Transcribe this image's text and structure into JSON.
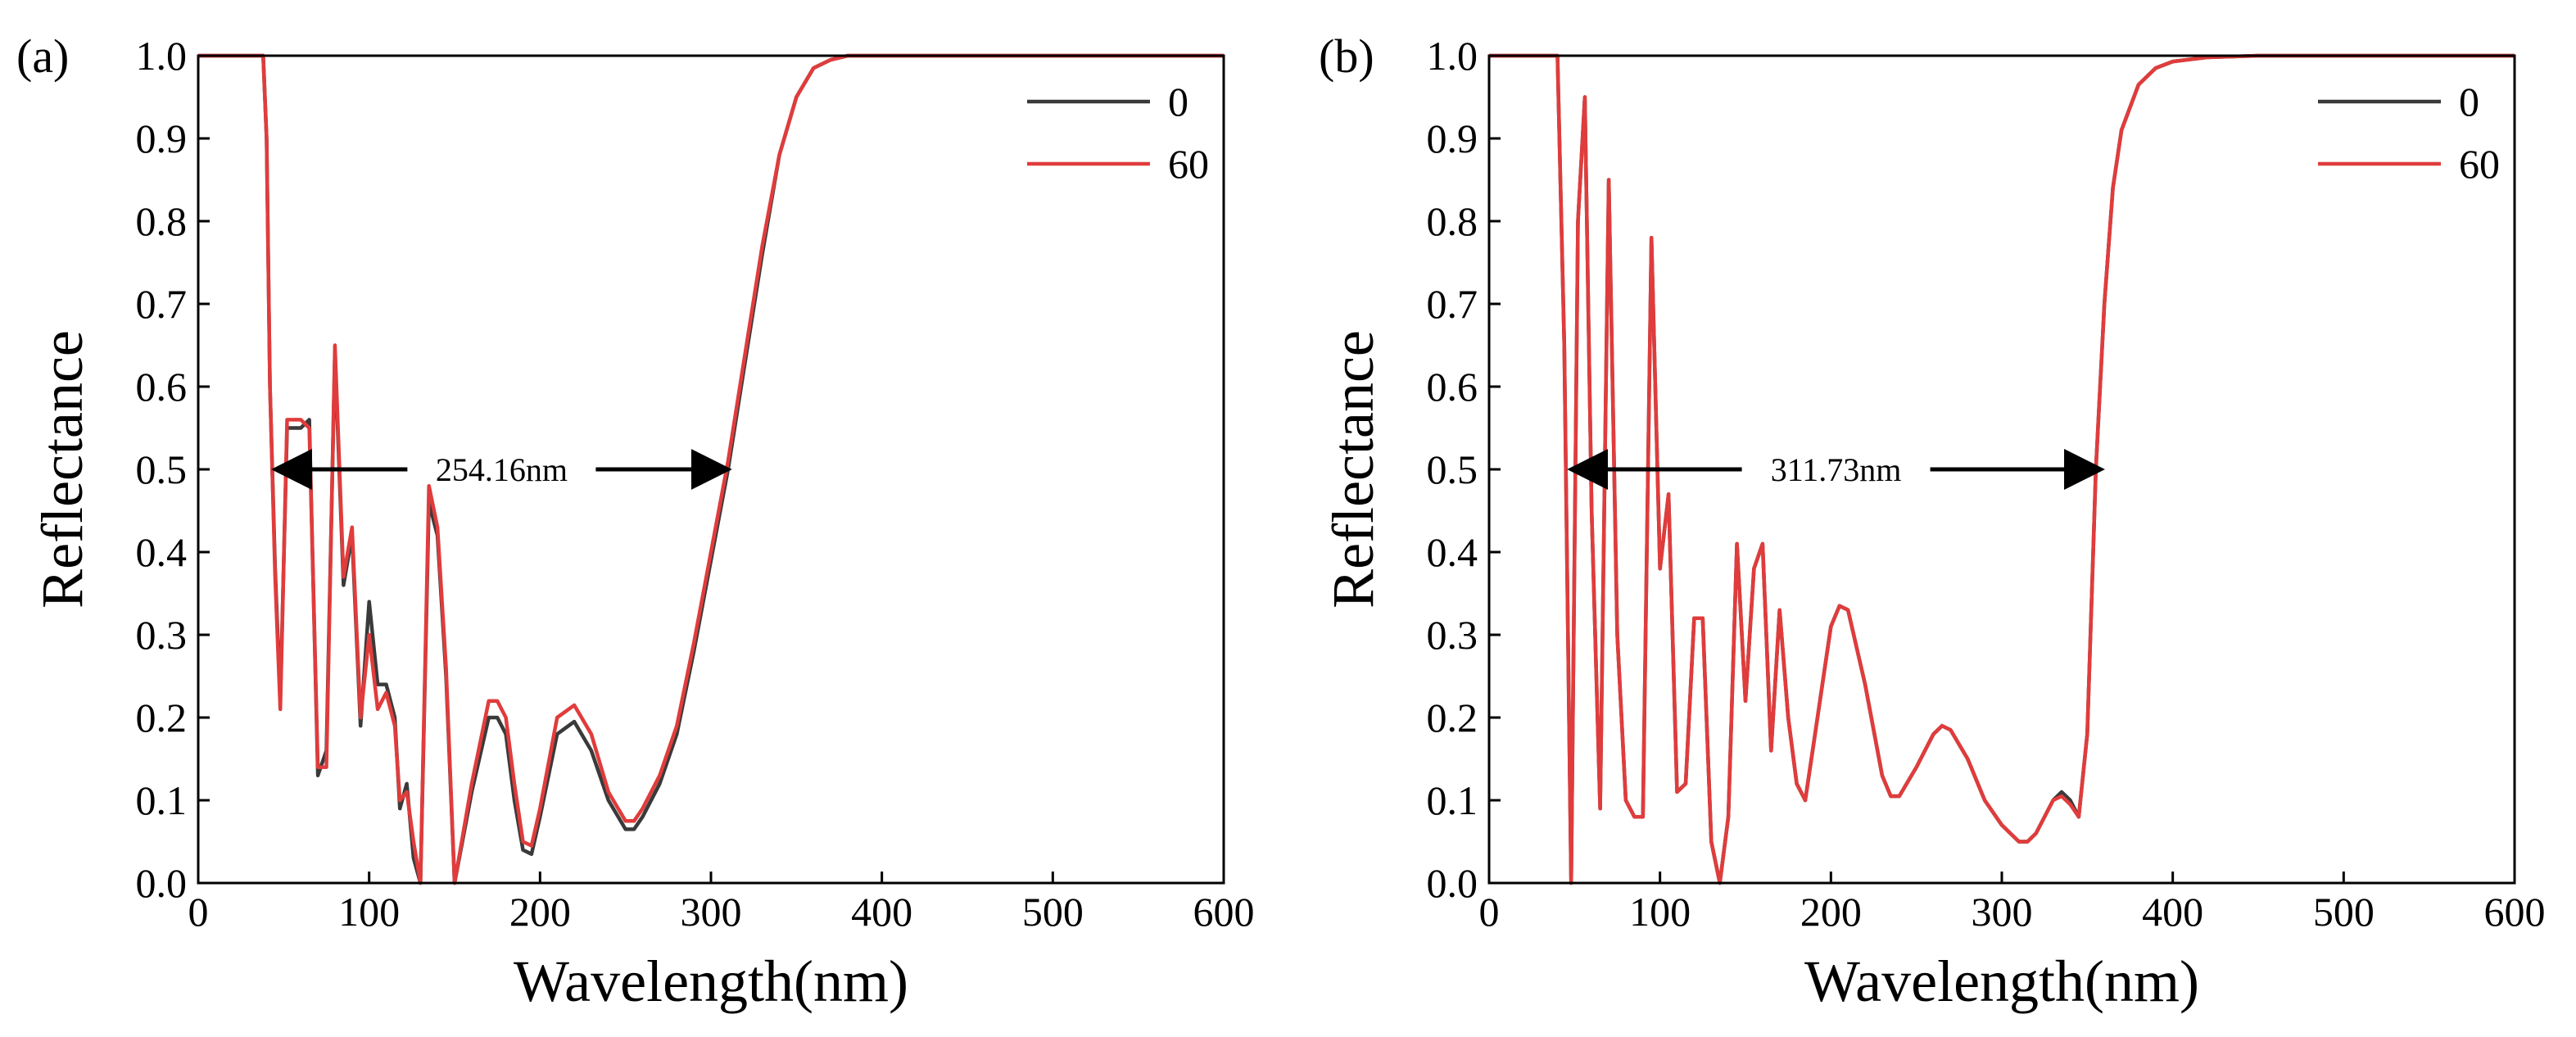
{
  "chart_data": [
    {
      "panel": "(a)",
      "type": "line",
      "xlabel": "Wavelength(nm)",
      "ylabel": "Reflectance",
      "xlim": [
        0,
        600
      ],
      "ylim": [
        0,
        1.0
      ],
      "xticks": [
        "0",
        "100",
        "200",
        "300",
        "400",
        "500",
        "600"
      ],
      "yticks": [
        "0.0",
        "0.1",
        "0.2",
        "0.3",
        "0.4",
        "0.5",
        "0.6",
        "0.7",
        "0.8",
        "0.9",
        "1.0"
      ],
      "legend": [
        "0",
        "60"
      ],
      "legend_position": "top-right",
      "annotation": {
        "text": "254.16nm",
        "y": 0.5,
        "x_start": 45,
        "x_end": 310
      },
      "series": [
        {
          "name": "0",
          "color": "#3a3a3a",
          "x": [
            0,
            38,
            40,
            42,
            45,
            48,
            52,
            55,
            60,
            65,
            70,
            75,
            80,
            85,
            90,
            95,
            100,
            105,
            110,
            115,
            118,
            122,
            126,
            130,
            135,
            140,
            145,
            150,
            160,
            170,
            175,
            180,
            185,
            190,
            195,
            200,
            210,
            220,
            230,
            240,
            250,
            255,
            260,
            270,
            280,
            290,
            300,
            310,
            320,
            330,
            340,
            350,
            360,
            370,
            380,
            390,
            400,
            420,
            450,
            500,
            550,
            600
          ],
          "y": [
            1.0,
            1.0,
            0.9,
            0.6,
            0.38,
            0.22,
            0.55,
            0.55,
            0.55,
            0.56,
            0.13,
            0.16,
            0.64,
            0.36,
            0.42,
            0.19,
            0.34,
            0.24,
            0.24,
            0.2,
            0.09,
            0.12,
            0.03,
            0.0,
            0.46,
            0.42,
            0.25,
            0.0,
            0.11,
            0.2,
            0.2,
            0.18,
            0.1,
            0.04,
            0.035,
            0.08,
            0.18,
            0.195,
            0.16,
            0.1,
            0.065,
            0.065,
            0.08,
            0.12,
            0.18,
            0.28,
            0.39,
            0.5,
            0.63,
            0.76,
            0.88,
            0.95,
            0.985,
            0.995,
            1.0,
            1.0,
            1.0,
            1.0,
            1.0,
            1.0,
            1.0,
            1.0
          ]
        },
        {
          "name": "60",
          "color": "#e03c3c",
          "x": [
            0,
            38,
            40,
            42,
            45,
            48,
            52,
            55,
            60,
            65,
            70,
            75,
            80,
            85,
            90,
            95,
            100,
            105,
            110,
            115,
            118,
            122,
            126,
            130,
            135,
            140,
            145,
            150,
            160,
            170,
            175,
            180,
            185,
            190,
            195,
            200,
            210,
            220,
            230,
            240,
            250,
            255,
            260,
            270,
            280,
            290,
            300,
            310,
            320,
            330,
            340,
            350,
            360,
            370,
            380,
            390,
            400,
            420,
            450,
            500,
            550,
            600
          ],
          "y": [
            1.0,
            1.0,
            0.9,
            0.6,
            0.37,
            0.21,
            0.56,
            0.56,
            0.56,
            0.55,
            0.14,
            0.14,
            0.65,
            0.37,
            0.43,
            0.2,
            0.3,
            0.21,
            0.23,
            0.19,
            0.1,
            0.11,
            0.05,
            0.0,
            0.48,
            0.43,
            0.26,
            0.0,
            0.12,
            0.22,
            0.22,
            0.2,
            0.12,
            0.05,
            0.045,
            0.09,
            0.2,
            0.215,
            0.18,
            0.11,
            0.075,
            0.075,
            0.09,
            0.13,
            0.19,
            0.29,
            0.4,
            0.51,
            0.64,
            0.77,
            0.88,
            0.95,
            0.985,
            0.995,
            1.0,
            1.0,
            1.0,
            1.0,
            1.0,
            1.0,
            1.0,
            1.0
          ]
        }
      ]
    },
    {
      "panel": "(b)",
      "type": "line",
      "xlabel": "Wavelength(nm)",
      "ylabel": "Reflectance",
      "xlim": [
        0,
        600
      ],
      "ylim": [
        0,
        1.0
      ],
      "xticks": [
        "0",
        "100",
        "200",
        "300",
        "400",
        "500",
        "600"
      ],
      "yticks": [
        "0.0",
        "0.1",
        "0.2",
        "0.3",
        "0.4",
        "0.5",
        "0.6",
        "0.7",
        "0.8",
        "0.9",
        "1.0"
      ],
      "legend": [
        "0",
        "60"
      ],
      "legend_position": "top-right",
      "annotation": {
        "text": "311.73nm",
        "y": 0.5,
        "x_start": 48,
        "x_end": 358
      },
      "series": [
        {
          "name": "0",
          "color": "#3a3a3a",
          "x": [
            0,
            40,
            44,
            48,
            52,
            56,
            60,
            65,
            70,
            75,
            80,
            85,
            90,
            95,
            100,
            105,
            110,
            115,
            120,
            125,
            130,
            135,
            140,
            145,
            150,
            155,
            160,
            165,
            170,
            175,
            180,
            185,
            190,
            200,
            205,
            210,
            220,
            230,
            235,
            240,
            250,
            260,
            265,
            270,
            280,
            290,
            300,
            310,
            315,
            320,
            330,
            335,
            340,
            345,
            350,
            355,
            360,
            365,
            370,
            380,
            390,
            400,
            420,
            450,
            500,
            550,
            600
          ],
          "y": [
            1.0,
            1.0,
            0.65,
            0.0,
            0.8,
            0.95,
            0.45,
            0.09,
            0.85,
            0.3,
            0.1,
            0.08,
            0.08,
            0.78,
            0.38,
            0.47,
            0.11,
            0.12,
            0.32,
            0.32,
            0.05,
            0.0,
            0.08,
            0.41,
            0.22,
            0.38,
            0.41,
            0.16,
            0.33,
            0.2,
            0.12,
            0.1,
            0.17,
            0.31,
            0.335,
            0.33,
            0.24,
            0.13,
            0.105,
            0.105,
            0.14,
            0.18,
            0.19,
            0.185,
            0.15,
            0.1,
            0.07,
            0.05,
            0.05,
            0.06,
            0.1,
            0.11,
            0.1,
            0.08,
            0.18,
            0.5,
            0.7,
            0.84,
            0.91,
            0.965,
            0.985,
            0.993,
            0.998,
            1.0,
            1.0,
            1.0,
            1.0
          ]
        },
        {
          "name": "60",
          "color": "#e03c3c",
          "x": [
            0,
            40,
            44,
            48,
            52,
            56,
            60,
            65,
            70,
            75,
            80,
            85,
            90,
            95,
            100,
            105,
            110,
            115,
            120,
            125,
            130,
            135,
            140,
            145,
            150,
            155,
            160,
            165,
            170,
            175,
            180,
            185,
            190,
            200,
            205,
            210,
            220,
            230,
            235,
            240,
            250,
            260,
            265,
            270,
            280,
            290,
            300,
            310,
            315,
            320,
            330,
            335,
            340,
            345,
            350,
            355,
            360,
            365,
            370,
            380,
            390,
            400,
            420,
            450,
            500,
            550,
            600
          ],
          "y": [
            1.0,
            1.0,
            0.65,
            0.0,
            0.8,
            0.95,
            0.45,
            0.09,
            0.85,
            0.3,
            0.1,
            0.08,
            0.08,
            0.78,
            0.38,
            0.47,
            0.11,
            0.12,
            0.32,
            0.32,
            0.05,
            0.0,
            0.08,
            0.41,
            0.22,
            0.38,
            0.41,
            0.16,
            0.33,
            0.2,
            0.12,
            0.1,
            0.17,
            0.31,
            0.335,
            0.33,
            0.24,
            0.13,
            0.105,
            0.105,
            0.14,
            0.18,
            0.19,
            0.185,
            0.15,
            0.1,
            0.07,
            0.05,
            0.05,
            0.06,
            0.1,
            0.105,
            0.095,
            0.08,
            0.18,
            0.5,
            0.7,
            0.84,
            0.91,
            0.965,
            0.985,
            0.993,
            0.998,
            1.0,
            1.0,
            1.0,
            1.0
          ]
        }
      ]
    }
  ]
}
